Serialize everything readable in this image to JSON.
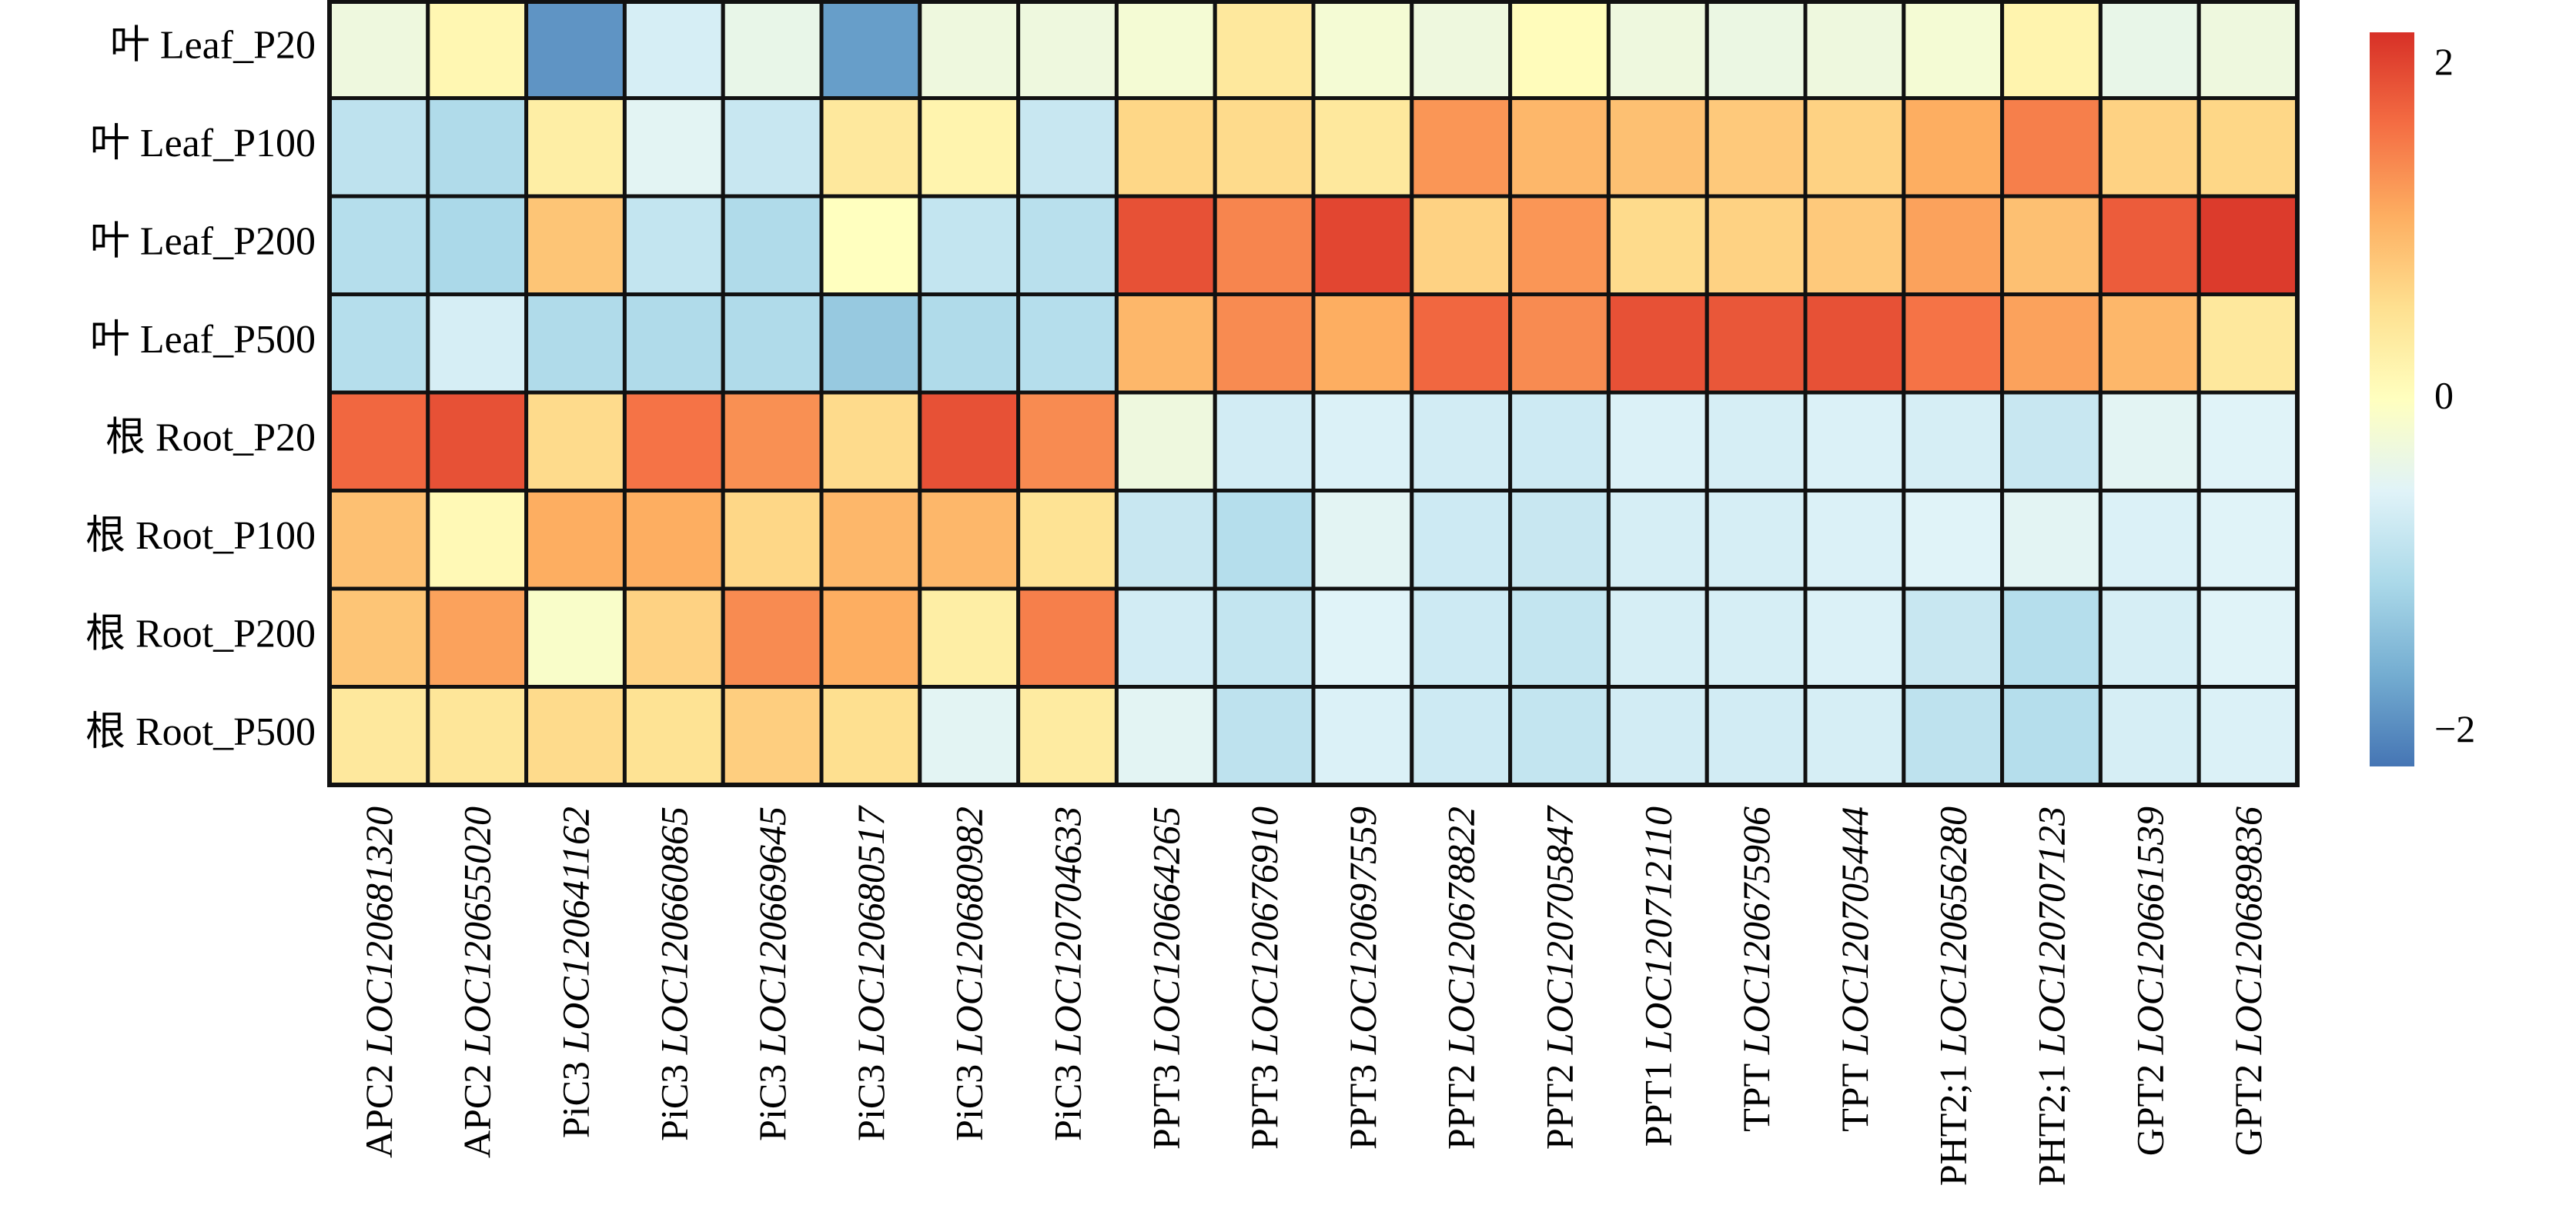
{
  "chart_data": {
    "type": "heatmap",
    "title": "",
    "xlabel": "",
    "ylabel": "",
    "rows": [
      "叶 Leaf_P20",
      "叶 Leaf_P100",
      "叶 Leaf_P200",
      "叶 Leaf_P500",
      "根 Root_P20",
      "根 Root_P100",
      "根 Root_P200",
      "根 Root_P500"
    ],
    "columns": [
      {
        "gene": "APC2",
        "id": "LOC120681320"
      },
      {
        "gene": "APC2",
        "id": "LOC120655020"
      },
      {
        "gene": "PiC3",
        "id": "LOC120641162"
      },
      {
        "gene": "PiC3",
        "id": "LOC120660865"
      },
      {
        "gene": "PiC3",
        "id": "LOC120669645"
      },
      {
        "gene": "PiC3",
        "id": "LOC120680517"
      },
      {
        "gene": "PiC3",
        "id": "LOC120680982"
      },
      {
        "gene": "PiC3",
        "id": "LOC120704633"
      },
      {
        "gene": "PPT3",
        "id": "LOC120664265"
      },
      {
        "gene": "PPT3",
        "id": "LOC120676910"
      },
      {
        "gene": "PPT3",
        "id": "LOC120697559"
      },
      {
        "gene": "PPT2",
        "id": "LOC120678822"
      },
      {
        "gene": "PPT2",
        "id": "LOC120705847"
      },
      {
        "gene": "PPT1",
        "id": "LOC120712110"
      },
      {
        "gene": "TPT",
        "id": "LOC120675906"
      },
      {
        "gene": "TPT",
        "id": "LOC120705444"
      },
      {
        "gene": "PHT2;1",
        "id": "LOC120656280"
      },
      {
        "gene": "PHT2;1",
        "id": "LOC120707123"
      },
      {
        "gene": "GPT2",
        "id": "LOC120661539"
      },
      {
        "gene": "GPT2",
        "id": "LOC120689836"
      }
    ],
    "values": [
      [
        -0.3,
        0.15,
        -1.9,
        -0.65,
        -0.4,
        -1.8,
        -0.3,
        -0.3,
        -0.2,
        0.4,
        -0.2,
        -0.3,
        0.05,
        -0.3,
        -0.35,
        -0.3,
        -0.2,
        0.2,
        -0.4,
        -0.3
      ],
      [
        -0.9,
        -1.05,
        0.3,
        -0.5,
        -0.8,
        0.4,
        0.2,
        -0.8,
        0.65,
        0.6,
        0.4,
        1.3,
        1.0,
        0.9,
        0.8,
        0.7,
        1.1,
        1.5,
        0.7,
        0.65
      ],
      [
        -1.0,
        -1.1,
        0.85,
        -0.85,
        -1.05,
        0.0,
        -0.85,
        -0.95,
        1.9,
        1.45,
        2.0,
        0.7,
        1.3,
        0.6,
        0.7,
        0.8,
        1.2,
        0.9,
        1.8,
        2.1
      ],
      [
        -1.0,
        -0.65,
        -1.05,
        -1.05,
        -1.05,
        -1.3,
        -1.05,
        -1.0,
        1.0,
        1.4,
        1.1,
        1.7,
        1.4,
        1.9,
        1.85,
        1.9,
        1.6,
        1.2,
        1.0,
        0.4
      ],
      [
        1.7,
        1.9,
        0.6,
        1.6,
        1.35,
        0.6,
        1.9,
        1.4,
        -0.3,
        -0.7,
        -0.6,
        -0.7,
        -0.75,
        -0.6,
        -0.65,
        -0.6,
        -0.65,
        -0.8,
        -0.5,
        -0.55
      ],
      [
        0.9,
        0.1,
        1.1,
        1.1,
        0.65,
        1.0,
        1.0,
        0.5,
        -0.8,
        -1.0,
        -0.5,
        -0.75,
        -0.8,
        -0.65,
        -0.65,
        -0.6,
        -0.55,
        -0.5,
        -0.6,
        -0.55
      ],
      [
        0.85,
        1.2,
        -0.1,
        0.7,
        1.4,
        1.1,
        0.3,
        1.5,
        -0.7,
        -0.85,
        -0.55,
        -0.75,
        -0.85,
        -0.65,
        -0.65,
        -0.6,
        -0.8,
        -1.0,
        -0.65,
        -0.55
      ],
      [
        0.4,
        0.45,
        0.6,
        0.5,
        0.75,
        0.55,
        -0.5,
        0.35,
        -0.5,
        -0.9,
        -0.6,
        -0.75,
        -0.85,
        -0.7,
        -0.7,
        -0.65,
        -0.9,
        -1.0,
        -0.65,
        -0.6
      ]
    ],
    "colorbar": {
      "range": [
        -2.2,
        2.2
      ],
      "ticks": [
        {
          "value": 2,
          "label": "2"
        },
        {
          "value": 0,
          "label": "0"
        },
        {
          "value": -2,
          "label": "−2"
        }
      ],
      "colormap": [
        "#4575b4",
        "#74add1",
        "#abd9e9",
        "#e0f3f8",
        "#ffffbf",
        "#fee090",
        "#fdae61",
        "#f46d43",
        "#d73027"
      ]
    },
    "legend_position": "right"
  }
}
